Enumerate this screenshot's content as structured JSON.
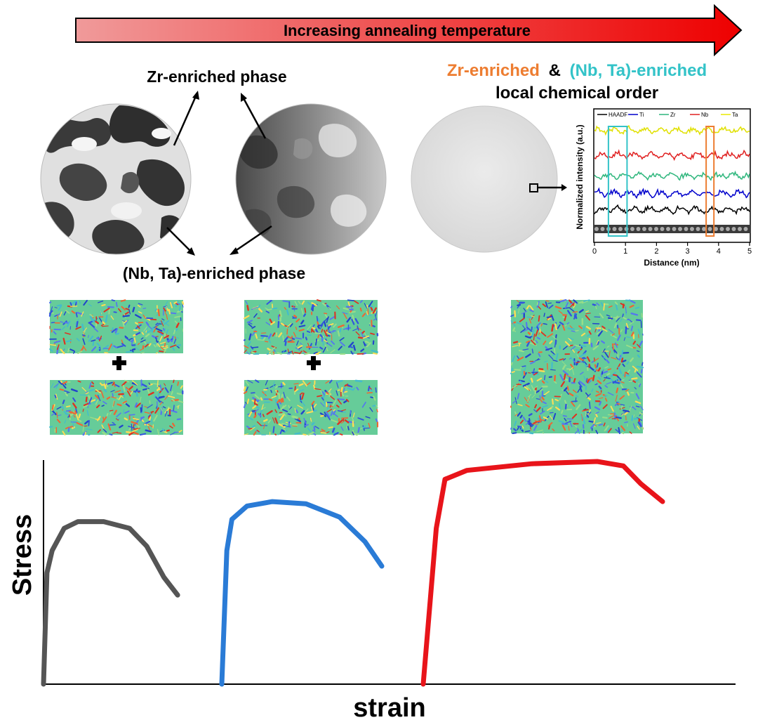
{
  "banner": {
    "label": "Increasing annealing temperature",
    "gradient_start": "#f08888",
    "gradient_end": "#ee0000"
  },
  "labels": {
    "zr_phase": "Zr-enriched phase",
    "nbta_phase": "(Nb, Ta)-enriched phase",
    "lco_part1": "Zr-enriched",
    "lco_part2": "&",
    "lco_part3": "(Nb, Ta)-enriched",
    "lco_line2": "local chemical order"
  },
  "colors": {
    "zr_accent": "#ed7d31",
    "nbta_accent": "#33c3c8",
    "curve_gray": "#555555",
    "curve_blue": "#2a7bd6",
    "curve_red": "#e8141a"
  },
  "inset": {
    "legend": [
      "HAADF",
      "Ti",
      "Zr",
      "Nb",
      "Ta"
    ],
    "legend_colors": [
      "#000000",
      "#0000cc",
      "#2db67c",
      "#e02020",
      "#e8e800"
    ],
    "ylabel": "Normalized intensity (a.u.)",
    "xlabel": "Distance (nm)",
    "xticks": [
      "0",
      "1",
      "2",
      "3",
      "4",
      "5"
    ],
    "xlim": [
      0,
      5
    ],
    "highlight_cyan": [
      0.45,
      1.05
    ],
    "highlight_orange": [
      3.6,
      3.85
    ]
  },
  "stress_strain": {
    "ylabel": "Stress",
    "xlabel": "strain"
  },
  "chart_data": {
    "type": "line",
    "title": "",
    "xlabel": "strain",
    "ylabel": "Stress",
    "series": [
      {
        "values": [
          [
            0.0,
            0
          ],
          [
            0.02,
            0.5
          ],
          [
            0.05,
            0.6
          ],
          [
            0.12,
            0.7
          ],
          [
            0.2,
            0.73
          ],
          [
            0.35,
            0.73
          ],
          [
            0.5,
            0.7
          ],
          [
            0.6,
            0.62
          ],
          [
            0.7,
            0.48
          ],
          [
            0.78,
            0.4
          ]
        ]
      },
      {
        "values": [
          [
            0.0,
            0
          ],
          [
            0.03,
            0.6
          ],
          [
            0.06,
            0.74
          ],
          [
            0.15,
            0.8
          ],
          [
            0.3,
            0.82
          ],
          [
            0.5,
            0.81
          ],
          [
            0.7,
            0.75
          ],
          [
            0.85,
            0.64
          ],
          [
            0.95,
            0.53
          ]
        ]
      },
      {
        "values": [
          [
            0.0,
            0
          ],
          [
            0.06,
            0.7
          ],
          [
            0.1,
            0.92
          ],
          [
            0.2,
            0.96
          ],
          [
            0.5,
            0.99
          ],
          [
            0.8,
            1.0
          ],
          [
            0.92,
            0.98
          ],
          [
            1.0,
            0.9
          ],
          [
            1.1,
            0.82
          ]
        ]
      }
    ]
  }
}
